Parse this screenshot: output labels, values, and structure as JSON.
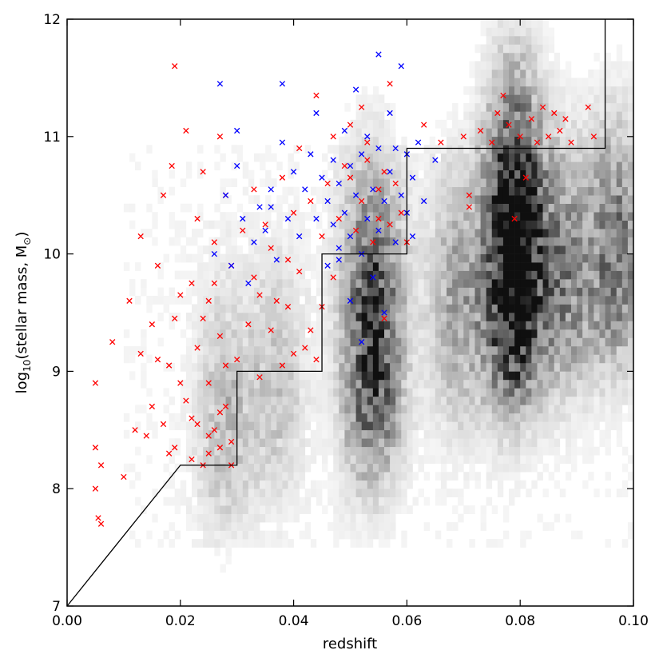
{
  "chart_data": {
    "type": "scatter",
    "title": "",
    "xlabel": "redshift",
    "ylabel_main": "log",
    "ylabel_sub": "10",
    "ylabel_rest": "(stellar mass, M",
    "ylabel_sun": "⊙",
    "ylabel_close": ")",
    "xlim": [
      0.0,
      0.1
    ],
    "ylim": [
      7,
      12
    ],
    "xticks": [
      0.0,
      0.02,
      0.04,
      0.06,
      0.08,
      0.1
    ],
    "xtick_labels": [
      "0.00",
      "0.02",
      "0.04",
      "0.06",
      "0.08",
      "0.10"
    ],
    "yticks": [
      7,
      8,
      9,
      10,
      11,
      12
    ],
    "ytick_labels": [
      "7",
      "8",
      "9",
      "10",
      "11",
      "12"
    ],
    "grid": false,
    "legend": "none",
    "colors": {
      "red": "#ff0000",
      "blue": "#0000ff",
      "limit_line": "#000000",
      "background_cmap": "greys"
    },
    "mass_limit_line": {
      "x": [
        0.0,
        0.02,
        0.02,
        0.03,
        0.03,
        0.045,
        0.045,
        0.06,
        0.06,
        0.095,
        0.095
      ],
      "y": [
        7.0,
        8.2,
        8.2,
        8.2,
        9.0,
        9.0,
        10.0,
        10.0,
        10.9,
        10.9,
        12.0
      ]
    },
    "density_clumps": [
      {
        "x": 0.028,
        "y": 8.6,
        "weight": 0.25
      },
      {
        "x": 0.037,
        "y": 8.9,
        "weight": 0.2
      },
      {
        "x": 0.054,
        "y": 9.7,
        "weight": 0.55
      },
      {
        "x": 0.054,
        "y": 8.8,
        "weight": 0.45
      },
      {
        "x": 0.079,
        "y": 9.7,
        "weight": 1.0
      },
      {
        "x": 0.079,
        "y": 10.6,
        "weight": 0.6
      },
      {
        "x": 0.069,
        "y": 9.6,
        "weight": 0.35
      },
      {
        "x": 0.088,
        "y": 9.8,
        "weight": 0.45
      },
      {
        "x": 0.097,
        "y": 10.0,
        "weight": 0.55
      }
    ],
    "series": [
      {
        "name": "",
        "marker": "x",
        "color": "red",
        "points": [
          [
            0.005,
            8.9
          ],
          [
            0.005,
            8.0
          ],
          [
            0.006,
            7.7
          ],
          [
            0.0055,
            7.75
          ],
          [
            0.006,
            8.2
          ],
          [
            0.005,
            8.35
          ],
          [
            0.008,
            9.25
          ],
          [
            0.01,
            8.1
          ],
          [
            0.011,
            9.6
          ],
          [
            0.012,
            8.5
          ],
          [
            0.013,
            10.15
          ],
          [
            0.013,
            9.15
          ],
          [
            0.014,
            8.45
          ],
          [
            0.015,
            8.7
          ],
          [
            0.016,
            9.9
          ],
          [
            0.017,
            10.5
          ],
          [
            0.018,
            8.3
          ],
          [
            0.0185,
            10.75
          ],
          [
            0.019,
            9.45
          ],
          [
            0.019,
            11.6
          ],
          [
            0.02,
            8.9
          ],
          [
            0.021,
            11.05
          ],
          [
            0.022,
            9.75
          ],
          [
            0.022,
            8.6
          ],
          [
            0.023,
            10.3
          ],
          [
            0.023,
            9.2
          ],
          [
            0.024,
            8.2
          ],
          [
            0.024,
            10.7
          ],
          [
            0.025,
            9.6
          ],
          [
            0.025,
            8.9
          ],
          [
            0.026,
            8.5
          ],
          [
            0.026,
            10.1
          ],
          [
            0.027,
            11.0
          ],
          [
            0.027,
            9.3
          ],
          [
            0.027,
            8.35
          ],
          [
            0.028,
            10.5
          ],
          [
            0.028,
            8.7
          ],
          [
            0.029,
            9.9
          ],
          [
            0.029,
            8.4
          ],
          [
            0.03,
            9.1
          ],
          [
            0.031,
            10.2
          ],
          [
            0.032,
            9.4
          ],
          [
            0.033,
            9.8
          ],
          [
            0.034,
            8.95
          ],
          [
            0.035,
            10.25
          ],
          [
            0.036,
            9.35
          ],
          [
            0.037,
            9.6
          ],
          [
            0.038,
            9.05
          ],
          [
            0.038,
            10.65
          ],
          [
            0.039,
            9.55
          ],
          [
            0.04,
            9.15
          ],
          [
            0.041,
            9.85
          ],
          [
            0.041,
            10.9
          ],
          [
            0.042,
            9.2
          ],
          [
            0.043,
            10.45
          ],
          [
            0.044,
            9.1
          ],
          [
            0.044,
            11.35
          ],
          [
            0.045,
            10.15
          ],
          [
            0.046,
            10.6
          ],
          [
            0.047,
            11.0
          ],
          [
            0.048,
            10.3
          ],
          [
            0.049,
            10.75
          ],
          [
            0.05,
            11.1
          ],
          [
            0.051,
            10.2
          ],
          [
            0.052,
            10.45
          ],
          [
            0.053,
            10.95
          ],
          [
            0.054,
            10.1
          ],
          [
            0.055,
            10.55
          ],
          [
            0.056,
            10.7
          ],
          [
            0.057,
            10.25
          ],
          [
            0.058,
            10.6
          ],
          [
            0.059,
            10.35
          ],
          [
            0.057,
            11.45
          ],
          [
            0.053,
            10.8
          ],
          [
            0.055,
            10.3
          ],
          [
            0.056,
            9.45
          ],
          [
            0.052,
            11.25
          ],
          [
            0.05,
            10.65
          ],
          [
            0.06,
            10.1
          ],
          [
            0.063,
            11.1
          ],
          [
            0.066,
            10.95
          ],
          [
            0.07,
            11.0
          ],
          [
            0.071,
            10.4
          ],
          [
            0.071,
            10.5
          ],
          [
            0.073,
            11.05
          ],
          [
            0.075,
            10.95
          ],
          [
            0.076,
            11.2
          ],
          [
            0.077,
            11.35
          ],
          [
            0.078,
            11.1
          ],
          [
            0.079,
            10.3
          ],
          [
            0.08,
            11.0
          ],
          [
            0.081,
            10.65
          ],
          [
            0.082,
            11.15
          ],
          [
            0.083,
            10.95
          ],
          [
            0.084,
            11.25
          ],
          [
            0.085,
            11.0
          ],
          [
            0.086,
            11.2
          ],
          [
            0.087,
            11.05
          ],
          [
            0.088,
            11.15
          ],
          [
            0.089,
            10.95
          ],
          [
            0.092,
            11.25
          ],
          [
            0.093,
            11.0
          ],
          [
            0.018,
            9.05
          ],
          [
            0.02,
            9.65
          ],
          [
            0.021,
            8.75
          ],
          [
            0.022,
            8.25
          ],
          [
            0.024,
            9.45
          ],
          [
            0.025,
            8.45
          ],
          [
            0.026,
            9.75
          ],
          [
            0.028,
            9.05
          ],
          [
            0.029,
            8.2
          ],
          [
            0.033,
            10.55
          ],
          [
            0.034,
            9.65
          ],
          [
            0.036,
            10.05
          ],
          [
            0.039,
            9.95
          ],
          [
            0.04,
            10.35
          ],
          [
            0.043,
            9.35
          ],
          [
            0.045,
            9.55
          ],
          [
            0.047,
            9.8
          ],
          [
            0.017,
            8.55
          ],
          [
            0.019,
            8.35
          ],
          [
            0.023,
            8.55
          ],
          [
            0.025,
            8.3
          ],
          [
            0.027,
            8.65
          ],
          [
            0.015,
            9.4
          ],
          [
            0.016,
            9.1
          ]
        ]
      },
      {
        "name": "",
        "marker": "x",
        "color": "blue",
        "points": [
          [
            0.026,
            10.0
          ],
          [
            0.027,
            11.45
          ],
          [
            0.028,
            10.5
          ],
          [
            0.029,
            9.9
          ],
          [
            0.03,
            10.75
          ],
          [
            0.03,
            11.05
          ],
          [
            0.031,
            10.3
          ],
          [
            0.032,
            9.75
          ],
          [
            0.033,
            10.1
          ],
          [
            0.034,
            10.4
          ],
          [
            0.035,
            10.2
          ],
          [
            0.036,
            10.55
          ],
          [
            0.037,
            9.95
          ],
          [
            0.038,
            10.95
          ],
          [
            0.038,
            11.45
          ],
          [
            0.039,
            10.3
          ],
          [
            0.04,
            10.7
          ],
          [
            0.041,
            10.15
          ],
          [
            0.042,
            10.55
          ],
          [
            0.043,
            10.85
          ],
          [
            0.044,
            10.3
          ],
          [
            0.044,
            11.2
          ],
          [
            0.045,
            10.65
          ],
          [
            0.046,
            9.9
          ],
          [
            0.046,
            10.45
          ],
          [
            0.047,
            10.25
          ],
          [
            0.047,
            10.8
          ],
          [
            0.048,
            10.05
          ],
          [
            0.048,
            10.6
          ],
          [
            0.049,
            10.35
          ],
          [
            0.049,
            11.05
          ],
          [
            0.05,
            10.75
          ],
          [
            0.05,
            10.15
          ],
          [
            0.051,
            11.4
          ],
          [
            0.051,
            10.5
          ],
          [
            0.052,
            10.85
          ],
          [
            0.052,
            10.0
          ],
          [
            0.053,
            10.3
          ],
          [
            0.053,
            11.0
          ],
          [
            0.054,
            10.55
          ],
          [
            0.054,
            9.8
          ],
          [
            0.055,
            10.2
          ],
          [
            0.055,
            10.9
          ],
          [
            0.055,
            11.7
          ],
          [
            0.056,
            10.45
          ],
          [
            0.056,
            9.5
          ],
          [
            0.057,
            10.7
          ],
          [
            0.057,
            11.2
          ],
          [
            0.058,
            10.1
          ],
          [
            0.058,
            10.9
          ],
          [
            0.059,
            10.5
          ],
          [
            0.059,
            11.6
          ],
          [
            0.06,
            10.35
          ],
          [
            0.06,
            10.85
          ],
          [
            0.061,
            10.15
          ],
          [
            0.061,
            10.65
          ],
          [
            0.062,
            10.95
          ],
          [
            0.063,
            10.45
          ],
          [
            0.065,
            10.8
          ],
          [
            0.052,
            9.25
          ],
          [
            0.05,
            9.6
          ],
          [
            0.048,
            9.95
          ],
          [
            0.036,
            10.4
          ]
        ]
      }
    ]
  }
}
